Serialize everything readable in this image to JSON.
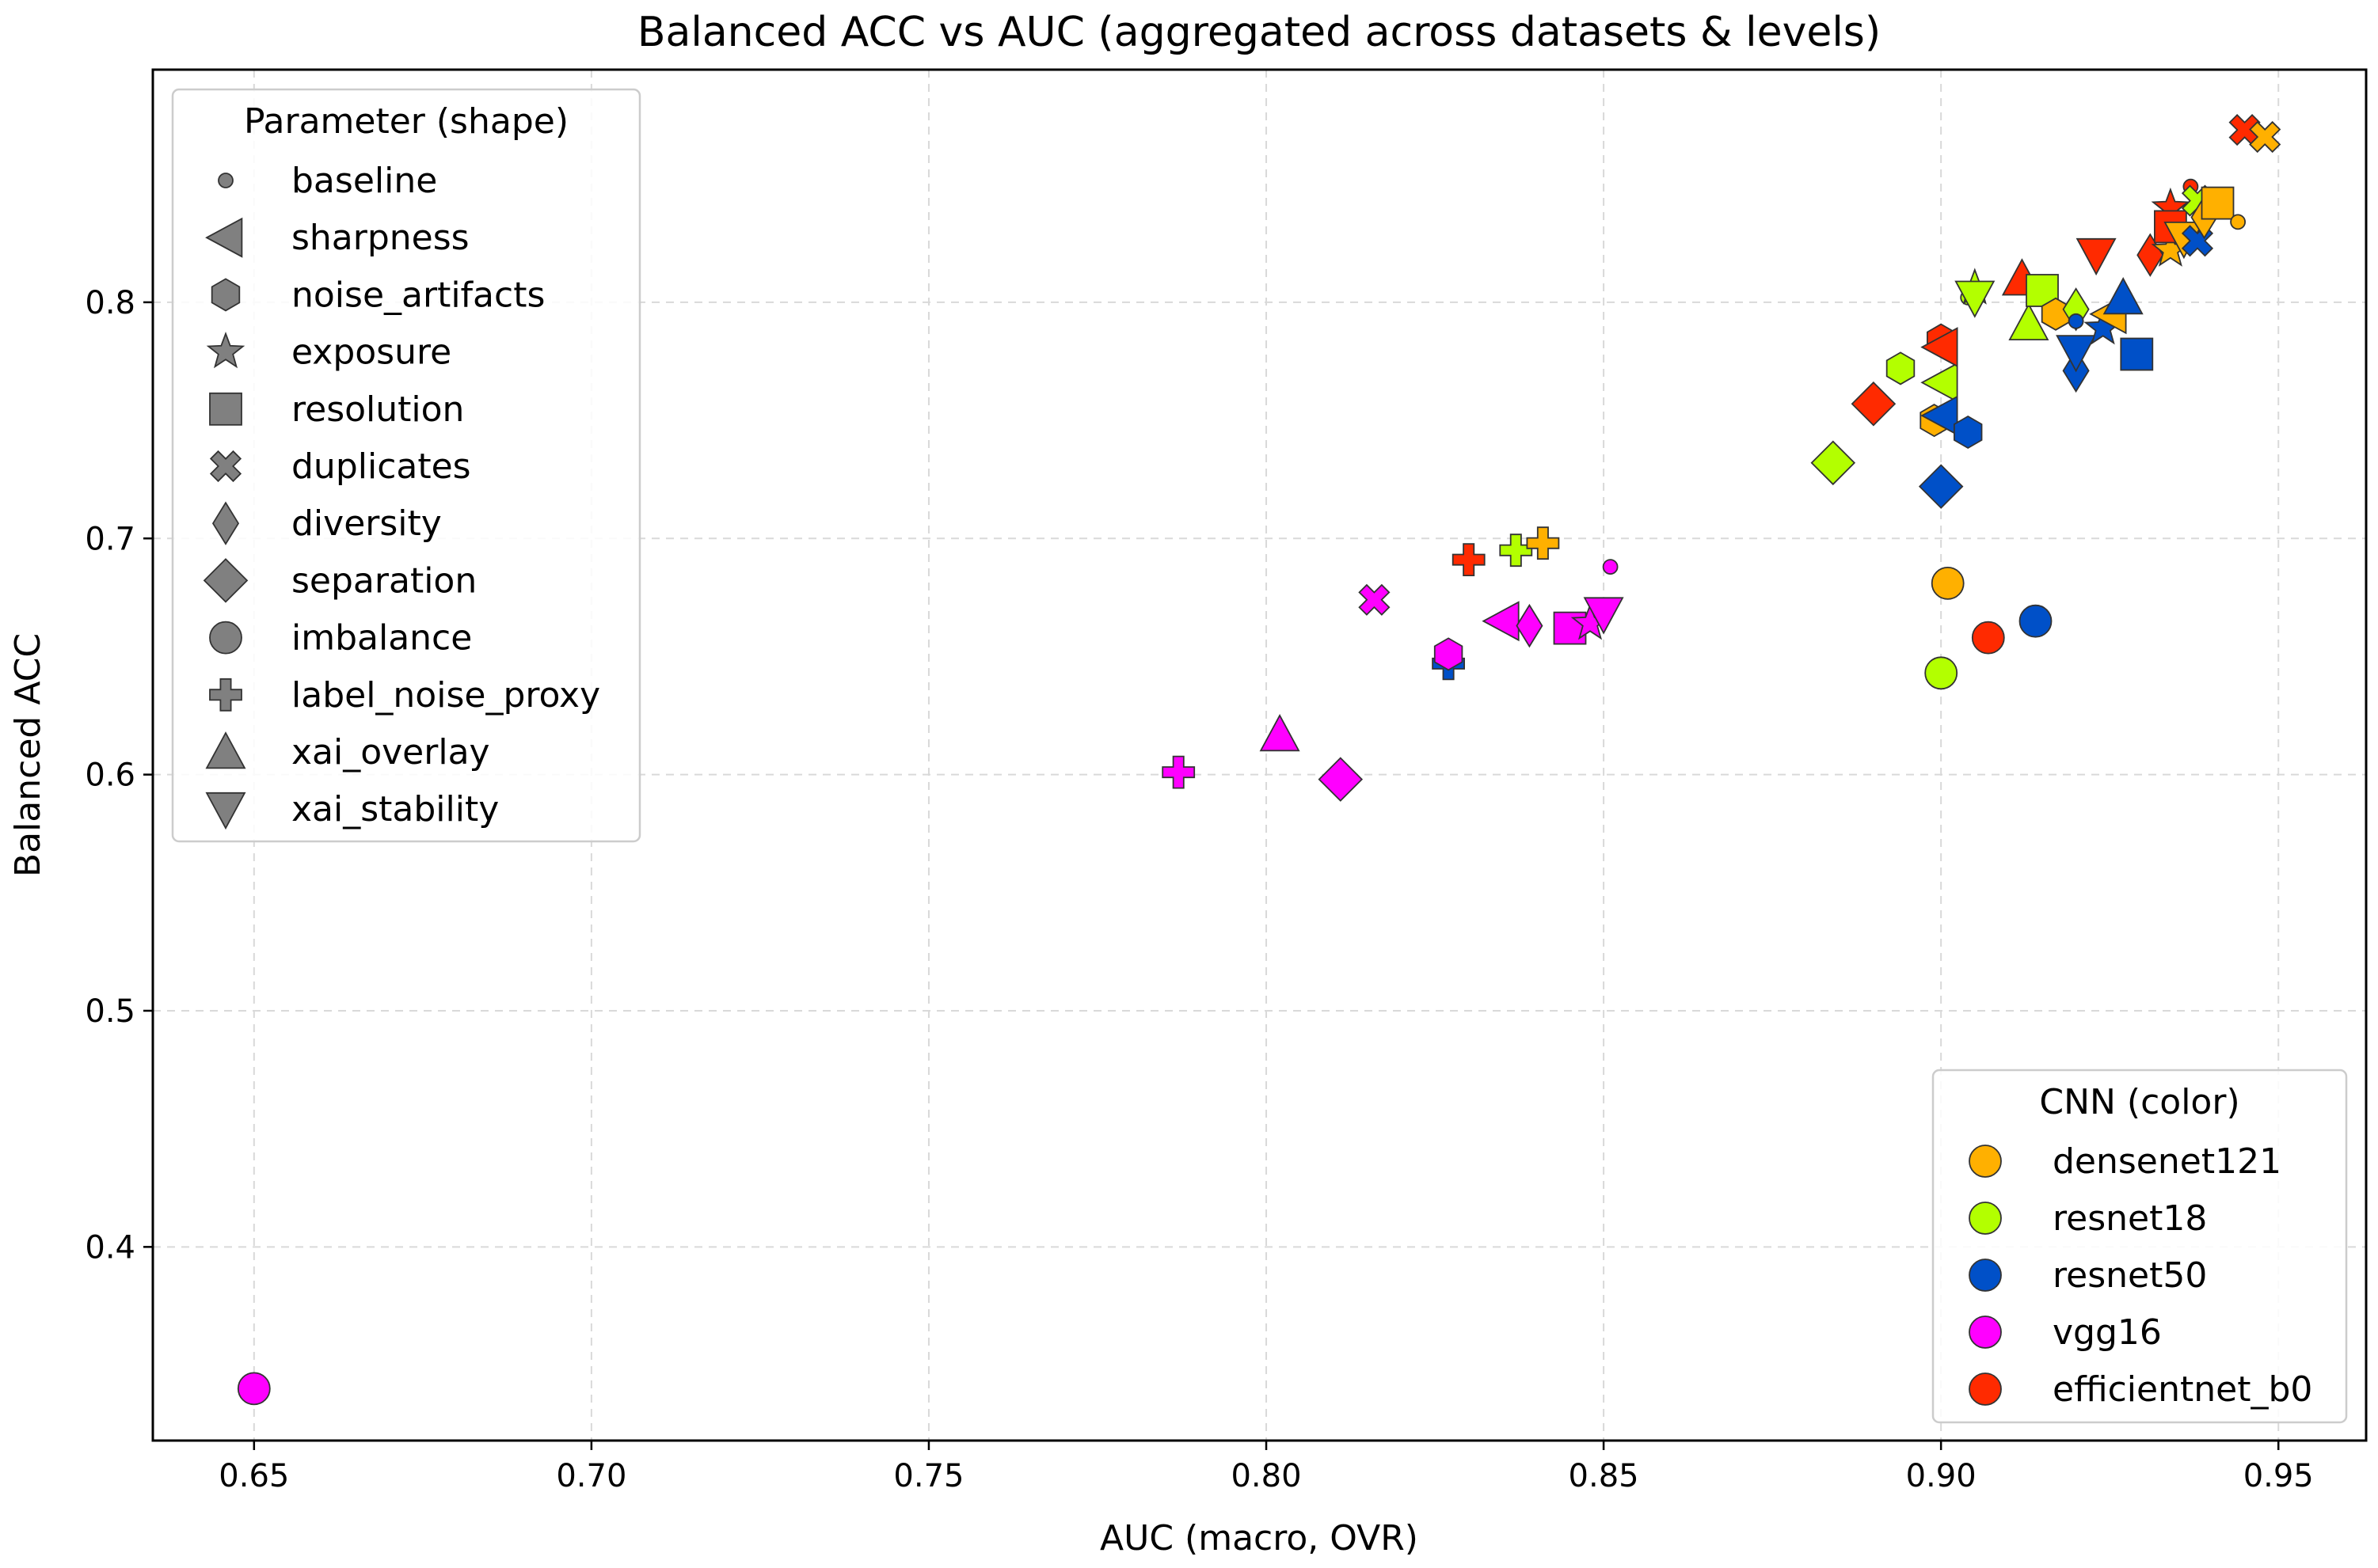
{
  "chart_data": {
    "type": "scatter",
    "title": "Balanced ACC vs AUC (aggregated across datasets & levels)",
    "xlabel": "AUC (macro, OVR)",
    "ylabel": "Balanced ACC",
    "xlim": [
      0.635,
      0.963
    ],
    "ylim": [
      0.318,
      0.8985
    ],
    "xticks": [
      0.65,
      0.7,
      0.75,
      0.8,
      0.85,
      0.9,
      0.95
    ],
    "xtick_labels": [
      "0.65",
      "0.70",
      "0.75",
      "0.80",
      "0.85",
      "0.90",
      "0.95"
    ],
    "yticks": [
      0.4,
      0.5,
      0.6,
      0.7,
      0.8
    ],
    "ytick_labels": [
      "0.4",
      "0.5",
      "0.6",
      "0.7",
      "0.8"
    ],
    "grid": true,
    "shape_legend": {
      "title": "Parameter (shape)",
      "position": "upper-left",
      "items": [
        {
          "label": "baseline",
          "marker": "small-circle"
        },
        {
          "label": "sharpness",
          "marker": "triangle-left"
        },
        {
          "label": "noise_artifacts",
          "marker": "hexagon"
        },
        {
          "label": "exposure",
          "marker": "star"
        },
        {
          "label": "resolution",
          "marker": "square"
        },
        {
          "label": "duplicates",
          "marker": "x-cross"
        },
        {
          "label": "diversity",
          "marker": "thin-diamond"
        },
        {
          "label": "separation",
          "marker": "diamond"
        },
        {
          "label": "imbalance",
          "marker": "circle"
        },
        {
          "label": "label_noise_proxy",
          "marker": "plus"
        },
        {
          "label": "xai_overlay",
          "marker": "triangle-up"
        },
        {
          "label": "xai_stability",
          "marker": "triangle-down"
        }
      ]
    },
    "color_legend": {
      "title": "CNN (color)",
      "position": "lower-right",
      "items": [
        {
          "label": "densenet121",
          "color": "#FFB000"
        },
        {
          "label": "resnet18",
          "color": "#B3FF00"
        },
        {
          "label": "resnet50",
          "color": "#0050C8"
        },
        {
          "label": "vgg16",
          "color": "#FF00FF"
        },
        {
          "label": "efficientnet_b0",
          "color": "#FF2A00"
        }
      ]
    },
    "points": [
      {
        "model": "vgg16",
        "parameter": "imbalance",
        "x": 0.65,
        "y": 0.34
      },
      {
        "model": "vgg16",
        "parameter": "label_noise_proxy",
        "x": 0.787,
        "y": 0.601
      },
      {
        "model": "vgg16",
        "parameter": "xai_overlay",
        "x": 0.802,
        "y": 0.617
      },
      {
        "model": "vgg16",
        "parameter": "separation",
        "x": 0.811,
        "y": 0.598
      },
      {
        "model": "vgg16",
        "parameter": "duplicates",
        "x": 0.816,
        "y": 0.674
      },
      {
        "model": "resnet50",
        "parameter": "label_noise_proxy",
        "x": 0.827,
        "y": 0.647
      },
      {
        "model": "vgg16",
        "parameter": "noise_artifacts",
        "x": 0.827,
        "y": 0.651
      },
      {
        "model": "efficientnet_b0",
        "parameter": "label_noise_proxy",
        "x": 0.83,
        "y": 0.691
      },
      {
        "model": "vgg16",
        "parameter": "sharpness",
        "x": 0.835,
        "y": 0.665
      },
      {
        "model": "resnet18",
        "parameter": "label_noise_proxy",
        "x": 0.837,
        "y": 0.695
      },
      {
        "model": "vgg16",
        "parameter": "diversity",
        "x": 0.839,
        "y": 0.663
      },
      {
        "model": "densenet121",
        "parameter": "label_noise_proxy",
        "x": 0.841,
        "y": 0.698
      },
      {
        "model": "vgg16",
        "parameter": "resolution",
        "x": 0.845,
        "y": 0.662
      },
      {
        "model": "vgg16",
        "parameter": "exposure",
        "x": 0.848,
        "y": 0.664
      },
      {
        "model": "vgg16",
        "parameter": "xai_stability",
        "x": 0.85,
        "y": 0.668
      },
      {
        "model": "vgg16",
        "parameter": "baseline",
        "x": 0.851,
        "y": 0.688
      },
      {
        "model": "resnet18",
        "parameter": "separation",
        "x": 0.884,
        "y": 0.732
      },
      {
        "model": "efficientnet_b0",
        "parameter": "separation",
        "x": 0.89,
        "y": 0.757
      },
      {
        "model": "resnet18",
        "parameter": "noise_artifacts",
        "x": 0.894,
        "y": 0.772
      },
      {
        "model": "densenet121",
        "parameter": "noise_artifacts",
        "x": 0.899,
        "y": 0.75
      },
      {
        "model": "resnet18",
        "parameter": "imbalance",
        "x": 0.9,
        "y": 0.643
      },
      {
        "model": "resnet50",
        "parameter": "separation",
        "x": 0.9,
        "y": 0.722
      },
      {
        "model": "resnet18",
        "parameter": "sharpness",
        "x": 0.9,
        "y": 0.766
      },
      {
        "model": "resnet50",
        "parameter": "sharpness",
        "x": 0.9,
        "y": 0.752
      },
      {
        "model": "efficientnet_b0",
        "parameter": "noise_artifacts",
        "x": 0.9,
        "y": 0.784
      },
      {
        "model": "efficientnet_b0",
        "parameter": "sharpness",
        "x": 0.9,
        "y": 0.781
      },
      {
        "model": "densenet121",
        "parameter": "imbalance",
        "x": 0.901,
        "y": 0.681
      },
      {
        "model": "resnet50",
        "parameter": "noise_artifacts",
        "x": 0.904,
        "y": 0.745
      },
      {
        "model": "resnet18",
        "parameter": "baseline",
        "x": 0.904,
        "y": 0.802
      },
      {
        "model": "resnet18",
        "parameter": "exposure",
        "x": 0.905,
        "y": 0.806
      },
      {
        "model": "resnet18",
        "parameter": "xai_stability",
        "x": 0.905,
        "y": 0.802
      },
      {
        "model": "efficientnet_b0",
        "parameter": "imbalance",
        "x": 0.907,
        "y": 0.658
      },
      {
        "model": "efficientnet_b0",
        "parameter": "xai_overlay",
        "x": 0.912,
        "y": 0.81
      },
      {
        "model": "resnet18",
        "parameter": "xai_overlay",
        "x": 0.913,
        "y": 0.791
      },
      {
        "model": "resnet50",
        "parameter": "imbalance",
        "x": 0.914,
        "y": 0.665
      },
      {
        "model": "resnet18",
        "parameter": "resolution",
        "x": 0.915,
        "y": 0.805
      },
      {
        "model": "densenet121",
        "parameter": "noise_artifacts",
        "x": 0.917,
        "y": 0.795
      },
      {
        "model": "resnet18",
        "parameter": "diversity",
        "x": 0.92,
        "y": 0.797
      },
      {
        "model": "resnet50",
        "parameter": "baseline",
        "x": 0.92,
        "y": 0.792
      },
      {
        "model": "resnet50",
        "parameter": "diversity",
        "x": 0.92,
        "y": 0.771
      },
      {
        "model": "resnet50",
        "parameter": "xai_stability",
        "x": 0.92,
        "y": 0.779
      },
      {
        "model": "efficientnet_b0",
        "parameter": "xai_stability",
        "x": 0.923,
        "y": 0.82
      },
      {
        "model": "resnet50",
        "parameter": "exposure",
        "x": 0.924,
        "y": 0.789
      },
      {
        "model": "densenet121",
        "parameter": "sharpness",
        "x": 0.925,
        "y": 0.795
      },
      {
        "model": "resnet50",
        "parameter": "xai_overlay",
        "x": 0.927,
        "y": 0.802
      },
      {
        "model": "resnet50",
        "parameter": "resolution",
        "x": 0.929,
        "y": 0.778
      },
      {
        "model": "efficientnet_b0",
        "parameter": "diversity",
        "x": 0.931,
        "y": 0.82
      },
      {
        "model": "densenet121",
        "parameter": "exposure",
        "x": 0.934,
        "y": 0.822
      },
      {
        "model": "efficientnet_b0",
        "parameter": "exposure",
        "x": 0.934,
        "y": 0.84
      },
      {
        "model": "efficientnet_b0",
        "parameter": "resolution",
        "x": 0.934,
        "y": 0.832
      },
      {
        "model": "densenet121",
        "parameter": "xai_stability",
        "x": 0.936,
        "y": 0.827
      },
      {
        "model": "efficientnet_b0",
        "parameter": "baseline",
        "x": 0.937,
        "y": 0.849
      },
      {
        "model": "resnet18",
        "parameter": "duplicates",
        "x": 0.938,
        "y": 0.843
      },
      {
        "model": "resnet50",
        "parameter": "duplicates",
        "x": 0.938,
        "y": 0.826
      },
      {
        "model": "densenet121",
        "parameter": "diversity",
        "x": 0.939,
        "y": 0.836
      },
      {
        "model": "densenet121",
        "parameter": "resolution",
        "x": 0.941,
        "y": 0.842
      },
      {
        "model": "densenet121",
        "parameter": "baseline",
        "x": 0.944,
        "y": 0.834
      },
      {
        "model": "efficientnet_b0",
        "parameter": "duplicates",
        "x": 0.945,
        "y": 0.873
      },
      {
        "model": "densenet121",
        "parameter": "duplicates",
        "x": 0.948,
        "y": 0.87
      }
    ]
  }
}
